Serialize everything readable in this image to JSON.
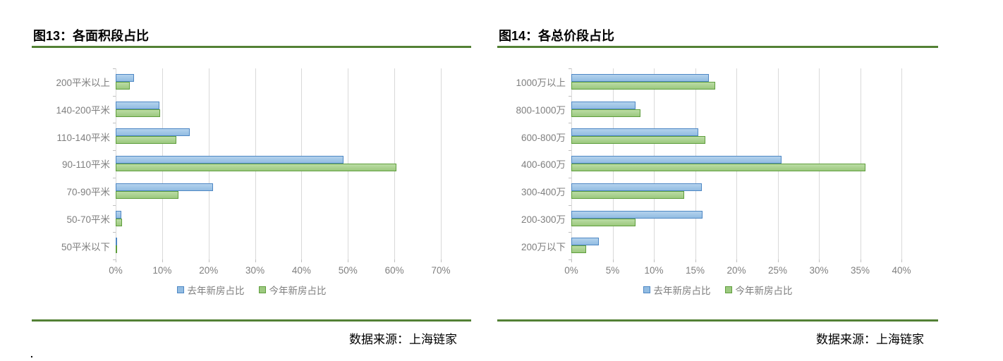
{
  "colors": {
    "accent_rule": "#538135",
    "gridline": "#D9D9D9",
    "tick": "#BFBFBF",
    "axis_label": "#7F7F7F",
    "title_text": "#000000"
  },
  "footer_dot": ".",
  "charts": [
    {
      "title": "图13：各面积段占比",
      "source": "数据来源：上海链家",
      "chart_data": {
        "type": "bar",
        "orientation": "horizontal",
        "title": "图13：各面积段占比",
        "categories": [
          "200平米以上",
          "140-200平米",
          "110-140平米",
          "90-110平米",
          "70-90平米",
          "50-70平米",
          "50平米以下"
        ],
        "series": [
          {
            "name": "去年新房占比",
            "fill": "#92BCE2",
            "fill_light": "#B3D2ED",
            "border": "#4E87C4",
            "values": [
              4,
              9.4,
              16,
              49,
              21,
              1.2,
              0.2
            ]
          },
          {
            "name": "今年新房占比",
            "fill": "#9CC97F",
            "fill_light": "#BBDCA4",
            "border": "#5F9E3D",
            "values": [
              3,
              9.6,
              13,
              60.5,
              13.5,
              1.4,
              0.2
            ]
          }
        ],
        "x_ticks": [
          "0%",
          "10%",
          "20%",
          "30%",
          "40%",
          "50%",
          "60%",
          "70%"
        ],
        "xlim": [
          0,
          70
        ],
        "xlabel": "",
        "ylabel": "",
        "grid": true,
        "legend_position": "bottom"
      }
    },
    {
      "title": "图14：各总价段占比",
      "source": "数据来源：上海链家",
      "chart_data": {
        "type": "bar",
        "orientation": "horizontal",
        "title": "图14：各总价段占比",
        "categories": [
          "1000万以上",
          "800-1000万",
          "600-800万",
          "400-600万",
          "300-400万",
          "200-300万",
          "200万以下"
        ],
        "series": [
          {
            "name": "去年新房占比",
            "fill": "#92BCE2",
            "fill_light": "#B3D2ED",
            "border": "#4E87C4",
            "values": [
              16.7,
              7.8,
              15.4,
              25.5,
              15.8,
              15.9,
              3.3
            ]
          },
          {
            "name": "今年新房占比",
            "fill": "#9CC97F",
            "fill_light": "#BBDCA4",
            "border": "#5F9E3D",
            "values": [
              17.4,
              8.4,
              16.2,
              35.6,
              13.7,
              7.8,
              1.8
            ]
          }
        ],
        "x_ticks": [
          "0%",
          "5%",
          "10%",
          "15%",
          "20%",
          "25%",
          "30%",
          "35%",
          "40%"
        ],
        "xlim": [
          0,
          40
        ],
        "xlabel": "",
        "ylabel": "",
        "grid": true,
        "legend_position": "bottom"
      }
    }
  ]
}
